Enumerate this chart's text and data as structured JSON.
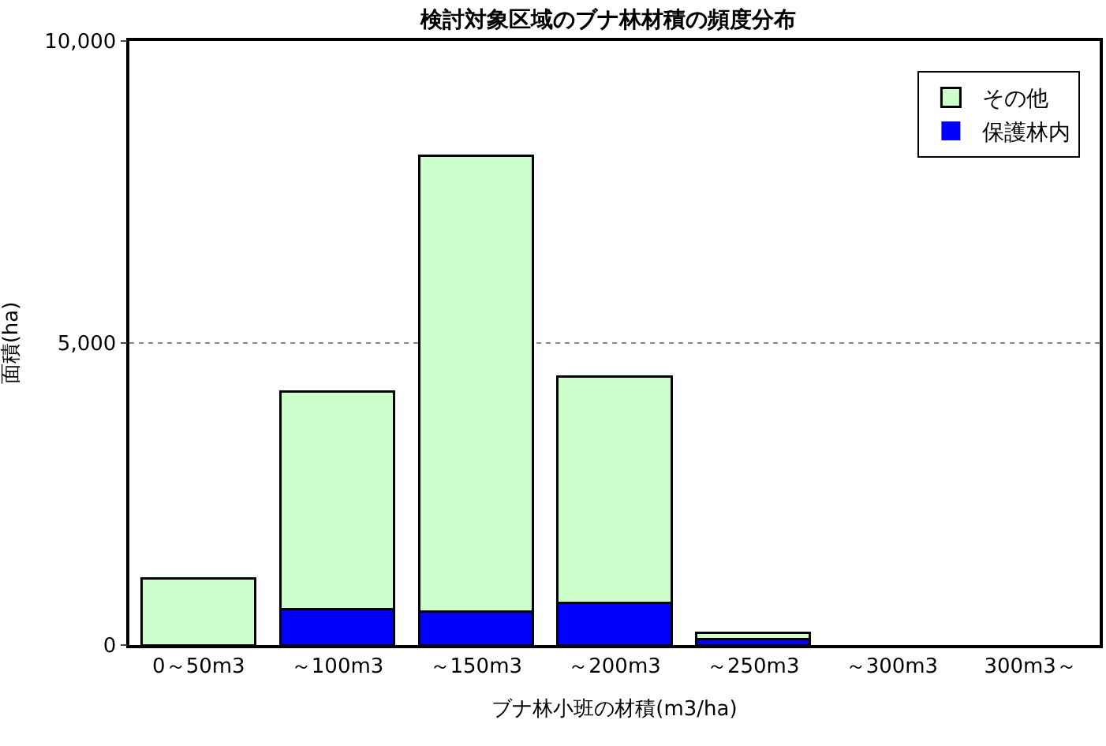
{
  "chart_data": {
    "type": "bar",
    "title": "検討対象区域のブナ林材積の頻度分布",
    "xlabel": "ブナ林小班の材積(m3/ha)",
    "ylabel": "面積(ha)",
    "categories": [
      "0～50m3",
      "～100m3",
      "～150m3",
      "～200m3",
      "～250m3",
      "～300m3",
      "300m3～"
    ],
    "series": [
      {
        "name": "保護林内",
        "color": "#0000ff",
        "values": [
          0,
          600,
          550,
          700,
          100,
          0,
          0
        ]
      },
      {
        "name": "その他",
        "color": "#ccffcc",
        "values": [
          1100,
          3600,
          7550,
          3750,
          100,
          0,
          0
        ]
      }
    ],
    "stacked": true,
    "ylim": [
      0,
      10000
    ],
    "yticks": [
      {
        "value": 0,
        "label": "0"
      },
      {
        "value": 5000,
        "label": "5,000"
      },
      {
        "value": 10000,
        "label": "10,000"
      }
    ],
    "grid": "y",
    "legend": "top right"
  }
}
